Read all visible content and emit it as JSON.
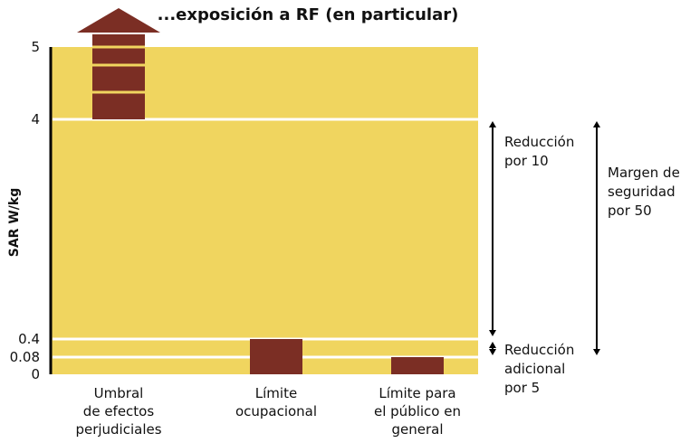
{
  "chart_data": {
    "type": "bar",
    "title": "...exposición a RF (en particular)",
    "ylabel": "SAR W/kg",
    "y_ticks": [
      "0",
      "0.08",
      "0.4",
      "4",
      "5"
    ],
    "categories": [
      [
        "Umbral",
        "de efectos",
        "perjudiciales"
      ],
      [
        "Límite",
        "ocupacional"
      ],
      [
        "Límite para",
        "el público en",
        "general"
      ]
    ],
    "values": [
      4,
      0.4,
      0.08
    ],
    "exceeds_axis": [
      true,
      false,
      false
    ],
    "colors": {
      "background": "#f0d55f",
      "bar": "#7b2e24",
      "gridline": "#ffffff",
      "arrow": "#000000"
    },
    "annotations": {
      "reduction_10": [
        "Reducción",
        "por 10"
      ],
      "reduction_5": [
        "Reducción",
        "adicional",
        "por 5"
      ],
      "safety_margin": [
        "Margen de",
        "seguridad",
        "por 50"
      ]
    }
  }
}
